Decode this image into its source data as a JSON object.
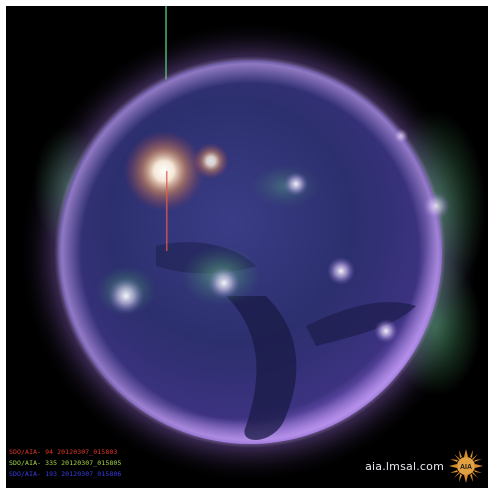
{
  "image": {
    "subject": "solar disk",
    "palette": {
      "background": "#000000",
      "disk_core": "#2c2f6e",
      "corona_violet": "#b07be0",
      "corona_green": "#4fa86b",
      "flare": "#fff3e6"
    }
  },
  "channel_labels": [
    {
      "text": "SDO/AIA-  94  20120307_015803",
      "color": "#e33a2a"
    },
    {
      "text": "SDO/AIA-  335  20120307_015805",
      "color": "#a8d84a"
    },
    {
      "text": "SDO/AIA-  193  20120307_015806",
      "color": "#3a3ee8"
    }
  ],
  "watermark": {
    "site": "aia.lmsal.com",
    "logo_text": "AIA",
    "logo_icon": "sun-logo-icon"
  }
}
